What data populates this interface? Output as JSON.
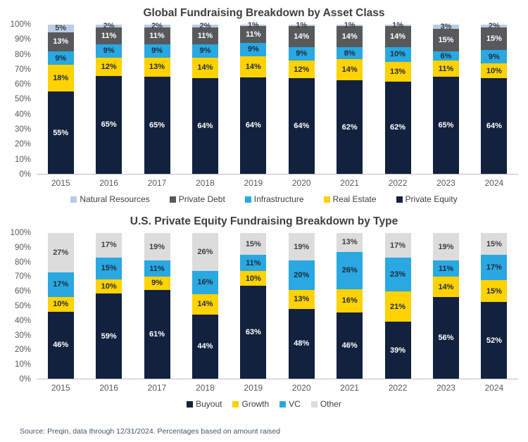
{
  "source_note": "Source: Preqin, data through 12/31/2024. Percentages based on amount raised",
  "colors": {
    "private_equity_navy": "#12213E",
    "real_estate_yellow": "#FFD200",
    "infrastructure_blue": "#29A8E1",
    "private_debt_gray": "#58595B",
    "natural_resources_lightblue": "#B9CDE4",
    "other_lightgray": "#DCDCDC",
    "axis_line": "#BFBFBF",
    "tick_text": "#595959",
    "title_text": "#3F3F3F"
  },
  "chart_data": [
    {
      "type": "bar",
      "stacked": true,
      "units": "percent",
      "title": "Global Fundraising Breakdown by Asset Class",
      "xlabel": "",
      "ylabel": "",
      "ylim": [
        0,
        100
      ],
      "grid": false,
      "legend_position": "bottom",
      "y_ticks": [
        "100%",
        "90%",
        "80%",
        "70%",
        "60%",
        "50%",
        "40%",
        "30%",
        "20%",
        "10%",
        "0%"
      ],
      "categories": [
        "2015",
        "2016",
        "2017",
        "2018",
        "2019",
        "2020",
        "2021",
        "2022",
        "2023",
        "2024"
      ],
      "series": [
        {
          "name": "Natural Resources",
          "color": "#B9CDE4",
          "label_color": "#404040",
          "values": [
            5,
            2,
            2,
            2,
            1,
            1,
            1,
            1,
            3,
            2
          ]
        },
        {
          "name": "Private Debt",
          "color": "#58595B",
          "label_color": "#FFFFFF",
          "values": [
            13,
            11,
            11,
            11,
            11,
            14,
            14,
            14,
            15,
            15
          ]
        },
        {
          "name": "Infrastructure",
          "color": "#29A8E1",
          "label_color": "#1F2A3C",
          "values": [
            9,
            9,
            9,
            9,
            9,
            9,
            8,
            10,
            6,
            9
          ]
        },
        {
          "name": "Real Estate",
          "color": "#FFD200",
          "label_color": "#1F2A3C",
          "values": [
            18,
            12,
            13,
            14,
            14,
            12,
            14,
            13,
            11,
            10
          ]
        },
        {
          "name": "Private Equity",
          "color": "#12213E",
          "label_color": "#FFFFFF",
          "values": [
            55,
            65,
            65,
            64,
            64,
            64,
            62,
            62,
            65,
            64
          ]
        }
      ],
      "stack_top_to_bottom": [
        0,
        1,
        2,
        3,
        4
      ]
    },
    {
      "type": "bar",
      "stacked": true,
      "units": "percent",
      "title": "U.S. Private Equity Fundraising Breakdown by Type",
      "xlabel": "",
      "ylabel": "",
      "ylim": [
        0,
        100
      ],
      "grid": false,
      "legend_position": "bottom",
      "y_ticks": [
        "100%",
        "90%",
        "80%",
        "70%",
        "60%",
        "50%",
        "40%",
        "30%",
        "20%",
        "10%",
        "0%"
      ],
      "categories": [
        "2015",
        "2016",
        "2017",
        "2018",
        "2019",
        "2020",
        "2021",
        "2022",
        "2023",
        "2024"
      ],
      "series": [
        {
          "name": "Buyout",
          "color": "#12213E",
          "label_color": "#FFFFFF",
          "values": [
            46,
            59,
            61,
            44,
            63,
            48,
            46,
            39,
            56,
            52
          ]
        },
        {
          "name": "Growth",
          "color": "#FFD200",
          "label_color": "#1F2A3C",
          "values": [
            10,
            10,
            9,
            14,
            10,
            13,
            16,
            21,
            14,
            15
          ]
        },
        {
          "name": "VC",
          "color": "#29A8E1",
          "label_color": "#1F2A3C",
          "values": [
            17,
            15,
            11,
            16,
            11,
            20,
            26,
            23,
            11,
            17
          ]
        },
        {
          "name": "Other",
          "color": "#DCDCDC",
          "label_color": "#404040",
          "values": [
            27,
            17,
            19,
            26,
            15,
            19,
            13,
            17,
            19,
            15
          ]
        }
      ],
      "stack_top_to_bottom": [
        3,
        2,
        1,
        0
      ]
    }
  ]
}
